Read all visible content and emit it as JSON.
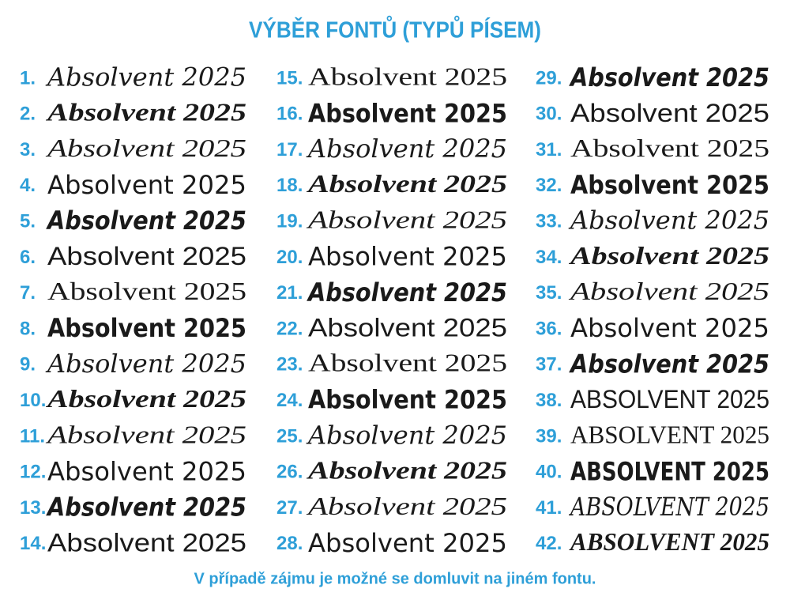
{
  "header": {
    "title": "VÝBĚR FONTŮ (TYPŮ PÍSEM)"
  },
  "items": [
    {
      "number": "1.",
      "text": "Absolvent 2025"
    },
    {
      "number": "2.",
      "text": "Absolvent 2025"
    },
    {
      "number": "3.",
      "text": "Absolvent 2025"
    },
    {
      "number": "4.",
      "text": "Absolvent 2025"
    },
    {
      "number": "5.",
      "text": "Absolvent 2025"
    },
    {
      "number": "6.",
      "text": "Absolvent 2025"
    },
    {
      "number": "7.",
      "text": "Absolvent 2025"
    },
    {
      "number": "8.",
      "text": "Absolvent 2025"
    },
    {
      "number": "9.",
      "text": "Absolvent 2025"
    },
    {
      "number": "10.",
      "text": "Absolvent 2025"
    },
    {
      "number": "11.",
      "text": "Absolvent 2025"
    },
    {
      "number": "12.",
      "text": "Absolvent 2025"
    },
    {
      "number": "13.",
      "text": "Absolvent 2025"
    },
    {
      "number": "14.",
      "text": "Absolvent 2025"
    },
    {
      "number": "15.",
      "text": "Absolvent 2025"
    },
    {
      "number": "16.",
      "text": "Absolvent 2025"
    },
    {
      "number": "17.",
      "text": "Absolvent 2025"
    },
    {
      "number": "18.",
      "text": "Absolvent 2025"
    },
    {
      "number": "19.",
      "text": "Absolvent 2025"
    },
    {
      "number": "20.",
      "text": "Absolvent 2025"
    },
    {
      "number": "21.",
      "text": "Absolvent 2025"
    },
    {
      "number": "22.",
      "text": "Absolvent 2025"
    },
    {
      "number": "23.",
      "text": "Absolvent 2025"
    },
    {
      "number": "24.",
      "text": "Absolvent 2025"
    },
    {
      "number": "25.",
      "text": "Absolvent 2025"
    },
    {
      "number": "26.",
      "text": "Absolvent 2025"
    },
    {
      "number": "27.",
      "text": "Absolvent 2025"
    },
    {
      "number": "28.",
      "text": "Absolvent 2025"
    },
    {
      "number": "29.",
      "text": "Absolvent 2025"
    },
    {
      "number": "30.",
      "text": "Absolvent 2025"
    },
    {
      "number": "31.",
      "text": "Absolvent 2025"
    },
    {
      "number": "32.",
      "text": "Absolvent 2025"
    },
    {
      "number": "33.",
      "text": "Absolvent 2025"
    },
    {
      "number": "34.",
      "text": "Absolvent 2025"
    },
    {
      "number": "35.",
      "text": "Absolvent 2025"
    },
    {
      "number": "36.",
      "text": "Absolvent 2025"
    },
    {
      "number": "37.",
      "text": "Absolvent 2025"
    },
    {
      "number": "38.",
      "text": "ABSOLVENT 2025"
    },
    {
      "number": "39.",
      "text": "ABSOLVENT 2025"
    },
    {
      "number": "40.",
      "text": "ABSOLVENT 2025"
    },
    {
      "number": "41.",
      "text": "ABSOLVENT 2025"
    },
    {
      "number": "42.",
      "text": "ABSOLVENT 2025"
    }
  ],
  "footer": {
    "text": "V případě zájmu je možné se domluvit na jiném fontu."
  }
}
